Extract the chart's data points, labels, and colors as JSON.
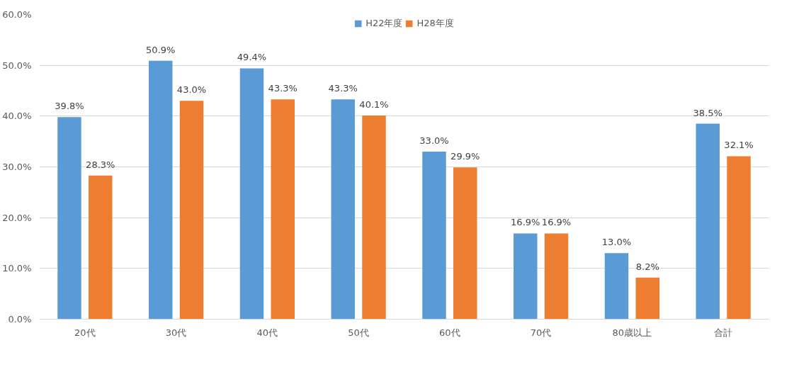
{
  "chart_data": {
    "type": "bar",
    "categories": [
      "20代",
      "30代",
      "40代",
      "50代",
      "60代",
      "70代",
      "80歳以上",
      "合計"
    ],
    "series": [
      {
        "name": "H22年度",
        "color": "#5b9bd5",
        "values": [
          39.8,
          50.9,
          49.4,
          43.3,
          33.0,
          16.9,
          13.0,
          38.5
        ],
        "value_labels": [
          "39.8%",
          "50.9%",
          "49.4%",
          "43.3%",
          "33.0%",
          "16.9%",
          "13.0%",
          "38.5%"
        ]
      },
      {
        "name": "H28年度",
        "color": "#ed7d31",
        "values": [
          28.3,
          43.0,
          43.3,
          40.1,
          29.9,
          16.9,
          8.2,
          32.1
        ],
        "value_labels": [
          "28.3%",
          "43.0%",
          "43.3%",
          "40.1%",
          "29.9%",
          "16.9%",
          "8.2%",
          "32.1%"
        ]
      }
    ],
    "ylim": [
      0,
      60
    ],
    "yticks": [
      {
        "value": 0,
        "label": "0.0%"
      },
      {
        "value": 10,
        "label": "10.0%"
      },
      {
        "value": 20,
        "label": "20.0%"
      },
      {
        "value": 30,
        "label": "30.0%"
      },
      {
        "value": 40,
        "label": "40.0%"
      },
      {
        "value": 50,
        "label": "50.0%"
      },
      {
        "value": 60,
        "label": "60.0%"
      }
    ],
    "grid": "y",
    "legend": "top"
  }
}
